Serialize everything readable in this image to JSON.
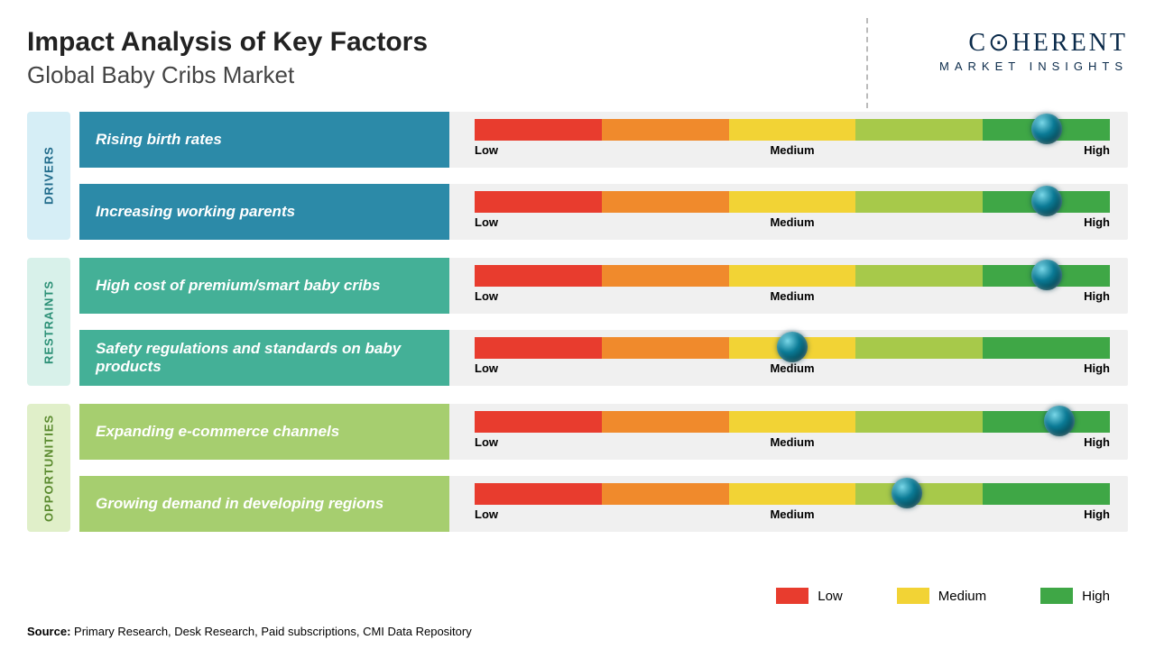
{
  "header": {
    "title": "Impact Analysis of Key Factors",
    "subtitle": "Global Baby Cribs Market",
    "logo_main": "COHERENT",
    "logo_sub": "MARKET INSIGHTS",
    "logo_color": "#153c5c"
  },
  "gauge": {
    "segment_colors": [
      "#e83c2e",
      "#f08a2c",
      "#f2d335",
      "#a7c94a",
      "#3fa746"
    ],
    "labels": {
      "low": "Low",
      "medium": "Medium",
      "high": "High"
    },
    "label_fontsize": 13
  },
  "categories": [
    {
      "name": "DRIVERS",
      "tab_bg": "#d6eef6",
      "tab_text": "#1f6a8a",
      "row_bg": "#2c8aa8",
      "factors": [
        {
          "label": "Rising birth rates",
          "knob_pct": 90
        },
        {
          "label": "Increasing working parents",
          "knob_pct": 90
        }
      ]
    },
    {
      "name": "RESTRAINTS",
      "tab_bg": "#d8f1ea",
      "tab_text": "#2b9076",
      "row_bg": "#44b097",
      "factors": [
        {
          "label": "High cost of premium/smart  baby cribs",
          "knob_pct": 90
        },
        {
          "label": "Safety regulations  and standards on baby products",
          "knob_pct": 50
        }
      ]
    },
    {
      "name": "OPPORTUNITIES",
      "tab_bg": "#e0efc9",
      "tab_text": "#5a8a2e",
      "row_bg": "#a6ce6f",
      "factors": [
        {
          "label": "Expanding e-commerce channels",
          "knob_pct": 92
        },
        {
          "label": "Growing demand in developing regions",
          "knob_pct": 68
        }
      ]
    }
  ],
  "legend": {
    "items": [
      {
        "label": "Low",
        "color": "#e83c2e"
      },
      {
        "label": "Medium",
        "color": "#f2d335"
      },
      {
        "label": "High",
        "color": "#3fa746"
      }
    ]
  },
  "source": {
    "label": "Source:",
    "text": " Primary Research, Desk Research, Paid subscriptions, CMI Data Repository"
  }
}
